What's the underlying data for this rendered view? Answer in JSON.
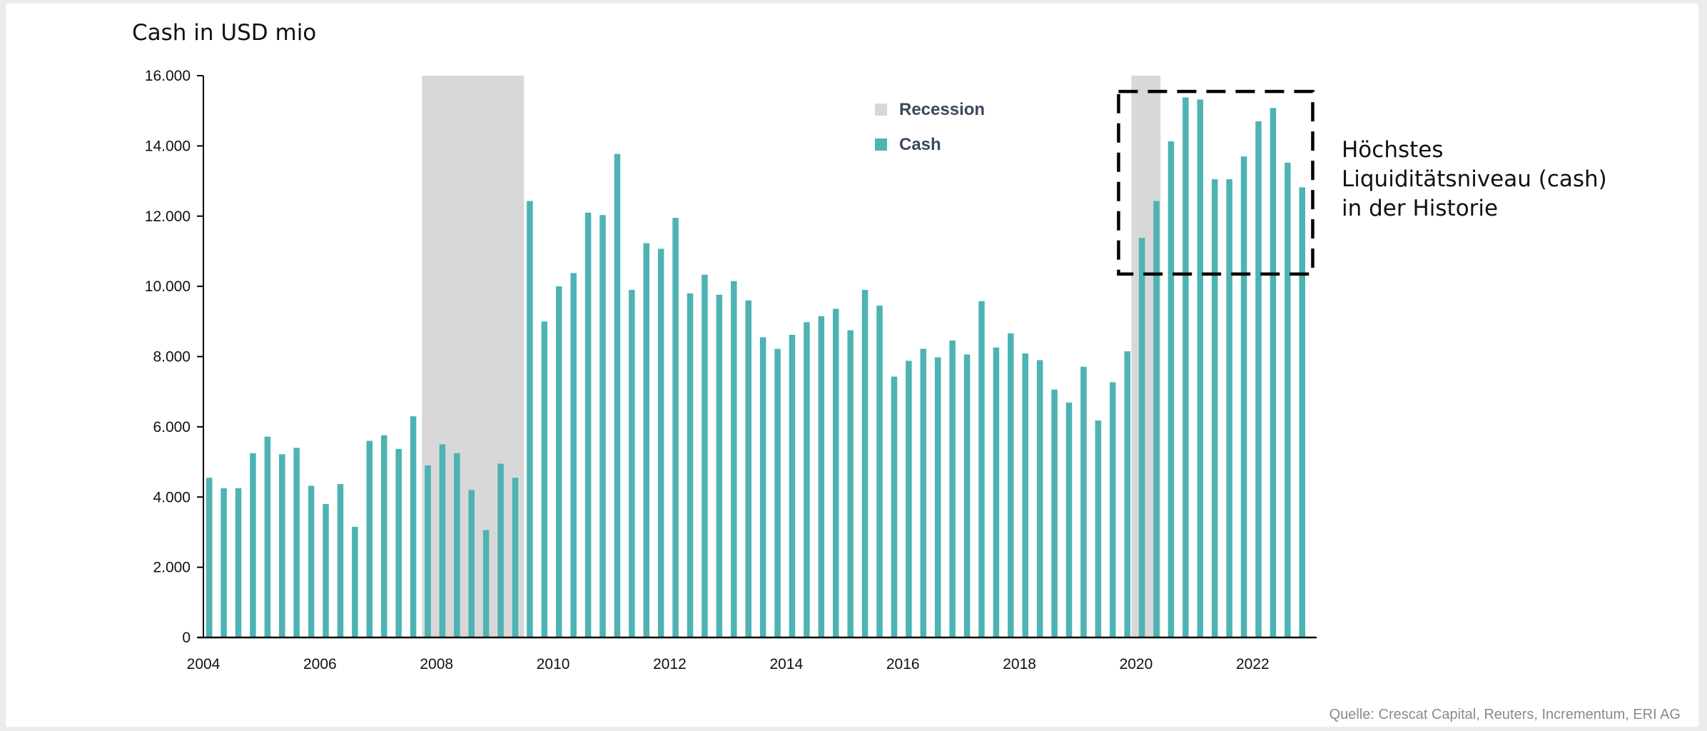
{
  "chart_data": {
    "type": "bar",
    "title": "Cash in USD mio",
    "xlabel": "",
    "ylabel": "",
    "ylim": [
      0,
      16000
    ],
    "yticks": [
      0,
      2000,
      4000,
      6000,
      8000,
      10000,
      12000,
      14000,
      16000
    ],
    "ytick_labels": [
      "0",
      "2.000",
      "4.000",
      "6.000",
      "8.000",
      "10.000",
      "12.000",
      "14.000",
      "16.000"
    ],
    "x_start": 2004.0,
    "x_end": 2023.0,
    "xticks": [
      2004,
      2006,
      2008,
      2010,
      2012,
      2014,
      2016,
      2018,
      2020,
      2022
    ],
    "xtick_labels": [
      "2004",
      "2006",
      "2008",
      "2010",
      "2012",
      "2014",
      "2016",
      "2018",
      "2020",
      "2022"
    ],
    "series": [
      {
        "name": "Cash",
        "color": "#4db3b3",
        "points": [
          {
            "x": 2004.1,
            "y": 4550
          },
          {
            "x": 2004.35,
            "y": 4250
          },
          {
            "x": 2004.6,
            "y": 4250
          },
          {
            "x": 2004.85,
            "y": 5250
          },
          {
            "x": 2005.1,
            "y": 5720
          },
          {
            "x": 2005.35,
            "y": 5220
          },
          {
            "x": 2005.6,
            "y": 5400
          },
          {
            "x": 2005.85,
            "y": 4320
          },
          {
            "x": 2006.1,
            "y": 3800
          },
          {
            "x": 2006.35,
            "y": 4370
          },
          {
            "x": 2006.6,
            "y": 3150
          },
          {
            "x": 2006.85,
            "y": 5600
          },
          {
            "x": 2007.1,
            "y": 5760
          },
          {
            "x": 2007.35,
            "y": 5370
          },
          {
            "x": 2007.6,
            "y": 6300
          },
          {
            "x": 2007.85,
            "y": 4900
          },
          {
            "x": 2008.1,
            "y": 5500
          },
          {
            "x": 2008.35,
            "y": 5250
          },
          {
            "x": 2008.6,
            "y": 4200
          },
          {
            "x": 2008.85,
            "y": 3060
          },
          {
            "x": 2009.1,
            "y": 4950
          },
          {
            "x": 2009.35,
            "y": 4550
          },
          {
            "x": 2009.6,
            "y": 12430
          },
          {
            "x": 2009.85,
            "y": 9000
          },
          {
            "x": 2010.1,
            "y": 10000
          },
          {
            "x": 2010.35,
            "y": 10380
          },
          {
            "x": 2010.6,
            "y": 12100
          },
          {
            "x": 2010.85,
            "y": 12030
          },
          {
            "x": 2011.1,
            "y": 13770
          },
          {
            "x": 2011.35,
            "y": 9900
          },
          {
            "x": 2011.6,
            "y": 11230
          },
          {
            "x": 2011.85,
            "y": 11070
          },
          {
            "x": 2012.1,
            "y": 11950
          },
          {
            "x": 2012.35,
            "y": 9800
          },
          {
            "x": 2012.6,
            "y": 10330
          },
          {
            "x": 2012.85,
            "y": 9760
          },
          {
            "x": 2013.1,
            "y": 10150
          },
          {
            "x": 2013.35,
            "y": 9600
          },
          {
            "x": 2013.6,
            "y": 8550
          },
          {
            "x": 2013.85,
            "y": 8220
          },
          {
            "x": 2014.1,
            "y": 8620
          },
          {
            "x": 2014.35,
            "y": 8980
          },
          {
            "x": 2014.6,
            "y": 9150
          },
          {
            "x": 2014.85,
            "y": 9360
          },
          {
            "x": 2015.1,
            "y": 8750
          },
          {
            "x": 2015.35,
            "y": 9900
          },
          {
            "x": 2015.6,
            "y": 9450
          },
          {
            "x": 2015.85,
            "y": 7430
          },
          {
            "x": 2016.1,
            "y": 7880
          },
          {
            "x": 2016.35,
            "y": 8220
          },
          {
            "x": 2016.6,
            "y": 7980
          },
          {
            "x": 2016.85,
            "y": 8460
          },
          {
            "x": 2017.1,
            "y": 8060
          },
          {
            "x": 2017.35,
            "y": 9580
          },
          {
            "x": 2017.6,
            "y": 8260
          },
          {
            "x": 2017.85,
            "y": 8660
          },
          {
            "x": 2018.1,
            "y": 8090
          },
          {
            "x": 2018.35,
            "y": 7900
          },
          {
            "x": 2018.6,
            "y": 7060
          },
          {
            "x": 2018.85,
            "y": 6690
          },
          {
            "x": 2019.1,
            "y": 7710
          },
          {
            "x": 2019.35,
            "y": 6180
          },
          {
            "x": 2019.6,
            "y": 7270
          },
          {
            "x": 2019.85,
            "y": 8150
          },
          {
            "x": 2020.1,
            "y": 11380
          },
          {
            "x": 2020.35,
            "y": 12430
          },
          {
            "x": 2020.6,
            "y": 14130
          },
          {
            "x": 2020.85,
            "y": 15380
          },
          {
            "x": 2021.1,
            "y": 15320
          },
          {
            "x": 2021.35,
            "y": 13050
          },
          {
            "x": 2021.6,
            "y": 13050
          },
          {
            "x": 2021.85,
            "y": 13700
          },
          {
            "x": 2022.1,
            "y": 14700
          },
          {
            "x": 2022.35,
            "y": 15080
          },
          {
            "x": 2022.6,
            "y": 13520
          },
          {
            "x": 2022.85,
            "y": 12820
          }
        ]
      }
    ],
    "recessions": {
      "name": "Recession",
      "color": "#d9d8d9",
      "periods": [
        {
          "start": 2007.75,
          "end": 2009.5
        },
        {
          "start": 2019.92,
          "end": 2020.42
        }
      ]
    },
    "legend": {
      "placement": "top-center",
      "entries": [
        {
          "label": "Recession",
          "color": "#d9d8d9"
        },
        {
          "label": "Cash",
          "color": "#4db3b3"
        }
      ]
    },
    "annotation": {
      "lines": [
        "Höchstes",
        "Liquiditätsniveau (cash)",
        "in der Historie"
      ],
      "box_x_start": 2019.7,
      "box_x_end": 2023.03,
      "box_y_low": 10350,
      "box_y_high": 15550
    },
    "grid": false
  },
  "source": "Quelle: Crescat Capital, Reuters, Incrementum, ERI AG"
}
